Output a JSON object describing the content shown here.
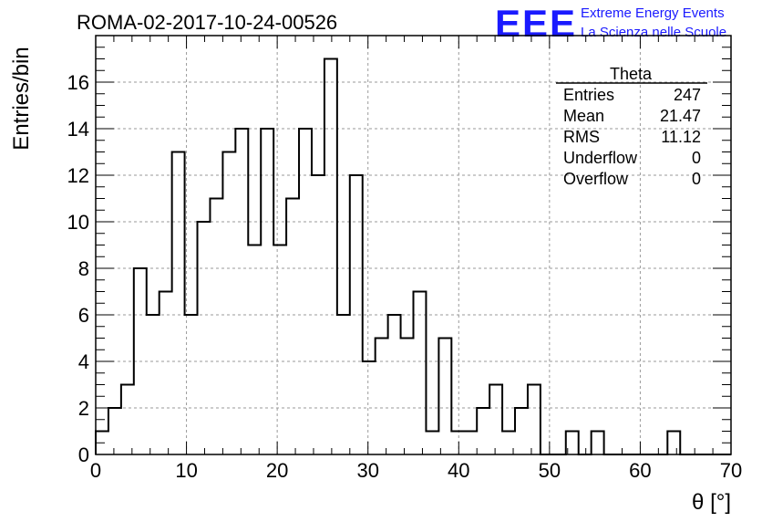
{
  "header": {
    "title": "ROMA-02-2017-10-24-00526",
    "logo_text": "EEE",
    "logo_line1": "Extreme Energy Events",
    "logo_line2": "La Scienza nelle Scuole"
  },
  "stats": {
    "name": "Theta",
    "rows": [
      {
        "label": "Entries",
        "value": "247"
      },
      {
        "label": "Mean",
        "value": "21.47"
      },
      {
        "label": "RMS",
        "value": "11.12"
      },
      {
        "label": "Underflow",
        "value": "0"
      },
      {
        "label": "Overflow",
        "value": "0"
      }
    ]
  },
  "colors": {
    "logo": "#1a1aff",
    "line": "#000000",
    "grid": "#999999"
  },
  "chart_data": {
    "type": "bar",
    "style": "step-histogram",
    "title": "ROMA-02-2017-10-24-00526",
    "xlabel": "θ [°]",
    "ylabel": "Entries/bin",
    "xlim": [
      0,
      70
    ],
    "ylim": [
      0,
      18
    ],
    "grid": true,
    "bin_width": 1.4,
    "x_ticks": [
      "0",
      "10",
      "20",
      "30",
      "40",
      "50",
      "60",
      "70"
    ],
    "y_ticks": [
      "0",
      "2",
      "4",
      "6",
      "8",
      "10",
      "12",
      "14",
      "16"
    ],
    "values": [
      1,
      2,
      3,
      8,
      6,
      7,
      13,
      6,
      10,
      11,
      13,
      14,
      9,
      14,
      9,
      11,
      14,
      12,
      17,
      6,
      12,
      4,
      5,
      6,
      5,
      7,
      1,
      5,
      1,
      1,
      2,
      3,
      1,
      2,
      3,
      0,
      0,
      1,
      0,
      1,
      0,
      0,
      0,
      0,
      0,
      1,
      0,
      0,
      0,
      0
    ]
  }
}
